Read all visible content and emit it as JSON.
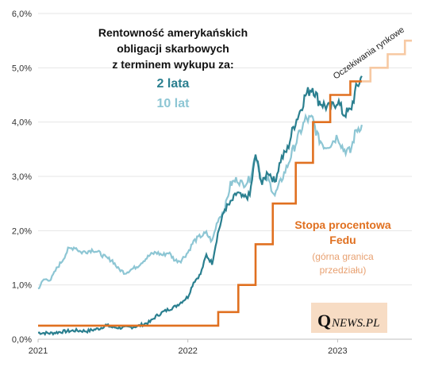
{
  "chart_data": {
    "type": "line",
    "title_lines": [
      "Rentowność amerykańskich",
      "obligacji  skarbowych",
      "z terminem wykupu za:"
    ],
    "xlabel": "",
    "ylabel": "",
    "x_ticks": [
      "2021",
      "2022",
      "2023"
    ],
    "y_ticks": [
      "0,0%",
      "1,0%",
      "2,0%",
      "3,0%",
      "4,0%",
      "5,0%",
      "6,0%"
    ],
    "xlim": [
      "2021-01-01",
      "2023-07-01"
    ],
    "ylim": [
      0,
      6
    ],
    "grid": "horizontal",
    "series": [
      {
        "name": "2 lata",
        "color": "#2a7f8f",
        "points": [
          [
            "2021-01-01",
            0.12
          ],
          [
            "2021-02-01",
            0.11
          ],
          [
            "2021-03-01",
            0.14
          ],
          [
            "2021-04-01",
            0.16
          ],
          [
            "2021-05-01",
            0.15
          ],
          [
            "2021-06-01",
            0.2
          ],
          [
            "2021-06-15",
            0.26
          ],
          [
            "2021-07-01",
            0.22
          ],
          [
            "2021-08-01",
            0.21
          ],
          [
            "2021-09-01",
            0.24
          ],
          [
            "2021-10-01",
            0.32
          ],
          [
            "2021-10-15",
            0.42
          ],
          [
            "2021-11-01",
            0.5
          ],
          [
            "2021-11-15",
            0.55
          ],
          [
            "2021-12-01",
            0.6
          ],
          [
            "2021-12-15",
            0.68
          ],
          [
            "2022-01-01",
            0.78
          ],
          [
            "2022-01-15",
            1.05
          ],
          [
            "2022-02-01",
            1.2
          ],
          [
            "2022-02-15",
            1.55
          ],
          [
            "2022-03-01",
            1.4
          ],
          [
            "2022-03-15",
            1.95
          ],
          [
            "2022-04-01",
            2.4
          ],
          [
            "2022-04-15",
            2.5
          ],
          [
            "2022-05-01",
            2.7
          ],
          [
            "2022-05-15",
            2.6
          ],
          [
            "2022-06-01",
            2.65
          ],
          [
            "2022-06-15",
            3.4
          ],
          [
            "2022-07-01",
            2.85
          ],
          [
            "2022-07-15",
            3.1
          ],
          [
            "2022-08-01",
            2.9
          ],
          [
            "2022-08-15",
            3.3
          ],
          [
            "2022-09-01",
            3.5
          ],
          [
            "2022-09-15",
            3.9
          ],
          [
            "2022-10-01",
            4.2
          ],
          [
            "2022-10-15",
            4.5
          ],
          [
            "2022-11-01",
            4.65
          ],
          [
            "2022-11-15",
            4.4
          ],
          [
            "2022-12-01",
            4.3
          ],
          [
            "2022-12-15",
            4.25
          ],
          [
            "2023-01-01",
            4.4
          ],
          [
            "2023-01-15",
            4.15
          ],
          [
            "2023-02-01",
            4.2
          ],
          [
            "2023-02-15",
            4.6
          ],
          [
            "2023-03-01",
            4.85
          ]
        ]
      },
      {
        "name": "10 lat",
        "color": "#8dc6d4",
        "points": [
          [
            "2021-01-01",
            0.93
          ],
          [
            "2021-01-15",
            1.1
          ],
          [
            "2021-02-01",
            1.1
          ],
          [
            "2021-02-15",
            1.3
          ],
          [
            "2021-03-01",
            1.45
          ],
          [
            "2021-03-15",
            1.65
          ],
          [
            "2021-04-01",
            1.7
          ],
          [
            "2021-04-15",
            1.6
          ],
          [
            "2021-05-01",
            1.62
          ],
          [
            "2021-05-15",
            1.65
          ],
          [
            "2021-06-01",
            1.58
          ],
          [
            "2021-06-15",
            1.5
          ],
          [
            "2021-07-01",
            1.45
          ],
          [
            "2021-07-15",
            1.3
          ],
          [
            "2021-08-01",
            1.22
          ],
          [
            "2021-08-15",
            1.28
          ],
          [
            "2021-09-01",
            1.35
          ],
          [
            "2021-09-15",
            1.45
          ],
          [
            "2021-10-01",
            1.55
          ],
          [
            "2021-10-15",
            1.6
          ],
          [
            "2021-11-01",
            1.55
          ],
          [
            "2021-11-15",
            1.6
          ],
          [
            "2021-12-01",
            1.45
          ],
          [
            "2021-12-15",
            1.45
          ],
          [
            "2022-01-01",
            1.6
          ],
          [
            "2022-01-15",
            1.8
          ],
          [
            "2022-02-01",
            1.9
          ],
          [
            "2022-02-15",
            1.95
          ],
          [
            "2022-03-01",
            1.8
          ],
          [
            "2022-03-15",
            2.2
          ],
          [
            "2022-04-01",
            2.4
          ],
          [
            "2022-04-15",
            2.85
          ],
          [
            "2022-05-01",
            2.95
          ],
          [
            "2022-05-15",
            2.85
          ],
          [
            "2022-06-01",
            2.95
          ],
          [
            "2022-06-15",
            3.4
          ],
          [
            "2022-07-01",
            2.9
          ],
          [
            "2022-07-15",
            2.95
          ],
          [
            "2022-08-01",
            2.65
          ],
          [
            "2022-08-15",
            2.9
          ],
          [
            "2022-09-01",
            3.2
          ],
          [
            "2022-09-15",
            3.5
          ],
          [
            "2022-10-01",
            3.8
          ],
          [
            "2022-10-15",
            4.05
          ],
          [
            "2022-11-01",
            4.05
          ],
          [
            "2022-11-15",
            3.7
          ],
          [
            "2022-12-01",
            3.55
          ],
          [
            "2022-12-15",
            3.6
          ],
          [
            "2023-01-01",
            3.75
          ],
          [
            "2023-01-15",
            3.5
          ],
          [
            "2023-02-01",
            3.45
          ],
          [
            "2023-02-15",
            3.85
          ],
          [
            "2023-03-01",
            3.95
          ]
        ]
      },
      {
        "name": "Stopa procentowa Fedu",
        "color": "#e07020",
        "step": true,
        "points": [
          [
            "2021-01-01",
            0.25
          ],
          [
            "2022-03-16",
            0.5
          ],
          [
            "2022-05-04",
            1.0
          ],
          [
            "2022-06-15",
            1.75
          ],
          [
            "2022-07-27",
            2.5
          ],
          [
            "2022-09-21",
            3.25
          ],
          [
            "2022-11-02",
            4.0
          ],
          [
            "2022-12-14",
            4.5
          ],
          [
            "2023-02-01",
            4.75
          ],
          [
            "2023-03-01",
            4.75
          ]
        ]
      },
      {
        "name": "Oczekiwania rynkowe",
        "color": "#f7c9a3",
        "step": true,
        "points": [
          [
            "2023-03-01",
            4.75
          ],
          [
            "2023-03-22",
            5.0
          ],
          [
            "2023-05-03",
            5.25
          ],
          [
            "2023-06-14",
            5.5
          ],
          [
            "2023-07-01",
            5.5
          ]
        ]
      }
    ],
    "annotations": {
      "legend_2y": "2 lata",
      "legend_10y": "10 lat",
      "fed_label_line1": "Stopa procentowa",
      "fed_label_line2": "Fedu",
      "fed_sub_line1": "(górna granica",
      "fed_sub_line2": "przedziału)",
      "expectations_label": "Oczekiwania rynkowe"
    },
    "logo": {
      "q": "Q",
      "rest": "NEWS.PL"
    }
  }
}
